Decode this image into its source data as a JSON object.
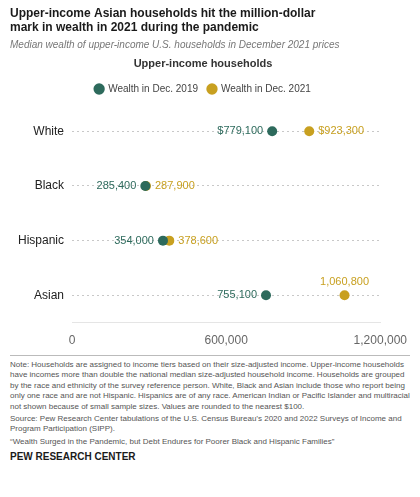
{
  "chart_data": {
    "type": "dot",
    "orientation": "horizontal",
    "title": "Upper-income Asian households hit the million-dollar\nmark in wealth in 2021 during the pandemic",
    "subtitle": "Median wealth of upper-income U.S. households in December 2021 prices",
    "annotations": [
      "Upper-income households"
    ],
    "categories": [
      "White",
      "Black",
      "Hispanic",
      "Asian"
    ],
    "series": [
      {
        "name": "Wealth in Dec. 2019",
        "color": "#2d6a5c",
        "values": [
          779100,
          285400,
          354000,
          755100
        ],
        "value_labels": [
          "$779,100",
          "285,400",
          "354,000",
          "755,100"
        ]
      },
      {
        "name": "Wealth in Dec. 2021",
        "color": "#c8a020",
        "values": [
          923300,
          287900,
          378600,
          1060800
        ],
        "value_labels": [
          "$923,300",
          "287,900",
          "378,600",
          "1,060,800"
        ]
      }
    ],
    "xlim": [
      0,
      1200000
    ],
    "xticks": [
      0,
      {
        "value": 600000,
        "label": "600,000"
      },
      {
        "value": 1200000,
        "label": "1,200,000"
      }
    ],
    "data_labels": true,
    "grid": "y",
    "legend": "top",
    "marker": "circle",
    "note": "Note: Households are assigned to income tiers based on their size-adjusted income. Upper-income households have incomes more than double the national median size-adjusted household income. Households are grouped by the race and ethnicity of the survey reference person. White, Black and Asian include those who report being only one race and are not Hispanic. Hispanics are of any race. American Indian or Pacific Islander and multiracial not shown because of small sample sizes. Values are rounded to the nearest $100.\nSource: Pew Research Center tabulations of the U.S. Census Bureau’s 2020 and 2022 Surveys of Income and Program Participation (SIPP).\n“Wealth Surged in the Pandemic, but Debt Endures for Poorer Black and Hispanic Families”",
    "footer": "PEW RESEARCH CENTER"
  }
}
